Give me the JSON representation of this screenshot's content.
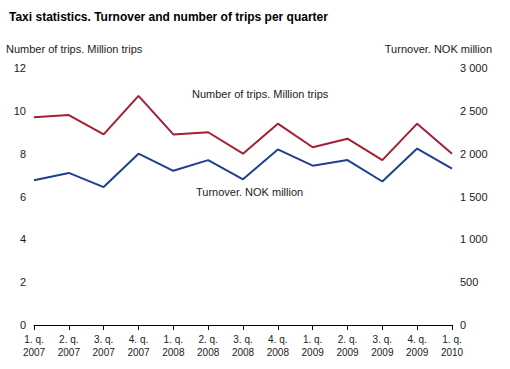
{
  "chart_data": {
    "type": "line",
    "title": "Taxi statistics. Turnover and number of trips per quarter",
    "y_label": "Number of trips. Million trips",
    "y2_label": "Turnover. NOK million",
    "categories": [
      "1. q. 2007",
      "2. q. 2007",
      "3. q. 2007",
      "4. q. 2007",
      "1. q. 2008",
      "2. q. 2008",
      "3. q. 2008",
      "4. q. 2008",
      "1. q. 2009",
      "2. q. 2009",
      "3. q. 2009",
      "4. q. 2009",
      "1. q. 2010"
    ],
    "series": [
      {
        "name": "Number of trips. Million trips",
        "color": "#a31f34",
        "values": [
          9.7,
          9.8,
          8.9,
          10.7,
          8.9,
          9.0,
          8.0,
          9.4,
          8.3,
          8.7,
          7.7,
          9.4,
          8.0
        ]
      },
      {
        "name": "Turnover. NOK million",
        "color": "#1f3f8f",
        "axis": "y2",
        "values": [
          1690,
          1775,
          1610,
          2000,
          1800,
          1925,
          1700,
          2050,
          1860,
          1925,
          1675,
          2060,
          1825
        ]
      }
    ],
    "ylim": [
      0,
      12
    ],
    "yticks": [
      0,
      2,
      4,
      6,
      8,
      10,
      12
    ],
    "y2lim": [
      0,
      3000
    ],
    "y2ticks": [
      0,
      500,
      {
        "value": 1000,
        "label": "1 000"
      },
      {
        "value": 1500,
        "label": "1 500"
      },
      {
        "value": 2000,
        "label": "2 000"
      },
      {
        "value": 2500,
        "label": "2 500"
      },
      {
        "value": 3000,
        "label": "3 000"
      }
    ],
    "grid": false,
    "marker": "none",
    "line_style": "solid"
  }
}
